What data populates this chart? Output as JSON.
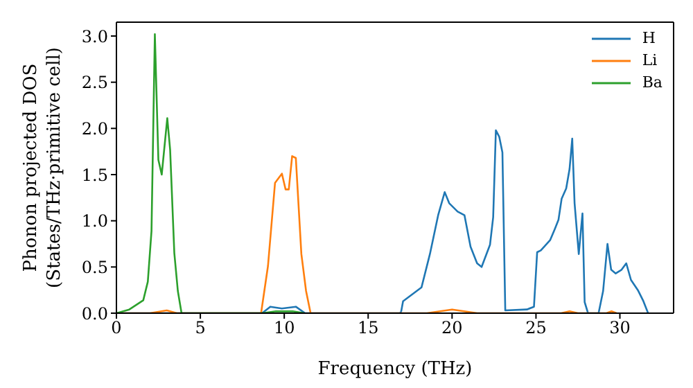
{
  "chart_data": {
    "type": "line",
    "xlabel": "Frequency (THz)",
    "ylabel": "Phonon projected DOS\n(States/THz·primitive cell)",
    "xlim": [
      0,
      33.2
    ],
    "xticks": [
      0,
      5,
      10,
      15,
      20,
      25,
      30
    ],
    "ylim": [
      0,
      3.15
    ],
    "yticks": [
      {
        "value": 0,
        "label": "0.0"
      },
      0.5,
      {
        "value": 1,
        "label": "1.0"
      },
      1.5,
      {
        "value": 2,
        "label": "2.0"
      },
      2.5,
      {
        "value": 3,
        "label": "3.0"
      }
    ],
    "legend": "top right",
    "line_style": "solid",
    "series": [
      {
        "name": "H",
        "color": "#1f77b4",
        "x": [
          0,
          8.68,
          9.17,
          9.86,
          10.69,
          11.24,
          16.9,
          16.97,
          17.08,
          18.18,
          18.68,
          19.17,
          19.56,
          19.83,
          20.33,
          20.74,
          21.1,
          21.49,
          21.76,
          22.26,
          22.45,
          22.61,
          22.81,
          23.0,
          23.17,
          24.46,
          24.88,
          25.07,
          25.29,
          25.84,
          26.12,
          26.34,
          26.53,
          26.8,
          27.0,
          27.16,
          27.3,
          27.55,
          27.77,
          27.9,
          28.1,
          28.73,
          29.0,
          29.26,
          29.48,
          29.75,
          30.1,
          30.38,
          30.66,
          31.07,
          31.4,
          31.68
        ],
        "values": [
          0,
          0,
          0.07,
          0.05,
          0.07,
          0,
          0,
          0.02,
          0.13,
          0.28,
          0.64,
          1.06,
          1.31,
          1.19,
          1.1,
          1.06,
          0.72,
          0.54,
          0.5,
          0.74,
          1.04,
          1.98,
          1.91,
          1.74,
          0.03,
          0.04,
          0.07,
          0.66,
          0.68,
          0.79,
          0.91,
          1.01,
          1.24,
          1.35,
          1.56,
          1.89,
          1.19,
          0.64,
          1.08,
          0.12,
          0,
          0,
          0.24,
          0.75,
          0.47,
          0.43,
          0.47,
          0.54,
          0.36,
          0.25,
          0.13,
          0
        ]
      },
      {
        "name": "Li",
        "color": "#ff7f0e",
        "x": [
          0,
          2.0,
          3.0,
          3.6,
          8.62,
          9.03,
          9.45,
          9.86,
          10.08,
          10.27,
          10.47,
          10.69,
          11.02,
          11.3,
          11.57,
          18.5,
          20.0,
          21.5,
          26.5,
          27.0,
          27.5,
          29.2,
          29.5,
          29.8
        ],
        "values": [
          0,
          0,
          0.03,
          0,
          0,
          0.51,
          1.41,
          1.51,
          1.34,
          1.34,
          1.7,
          1.68,
          0.64,
          0.24,
          0,
          0,
          0.04,
          0,
          0,
          0.02,
          0,
          0,
          0.02,
          0
        ]
      },
      {
        "name": "Ba",
        "color": "#2ca02c",
        "x": [
          0,
          0.77,
          1.6,
          1.87,
          2.09,
          2.29,
          2.5,
          2.7,
          3.03,
          3.2,
          3.45,
          3.66,
          3.88,
          8.7,
          9.5,
          10.5,
          11.2
        ],
        "values": [
          0,
          0.04,
          0.14,
          0.34,
          0.89,
          3.02,
          1.66,
          1.5,
          2.11,
          1.77,
          0.65,
          0.24,
          0,
          0,
          0.02,
          0.02,
          0
        ]
      }
    ]
  }
}
